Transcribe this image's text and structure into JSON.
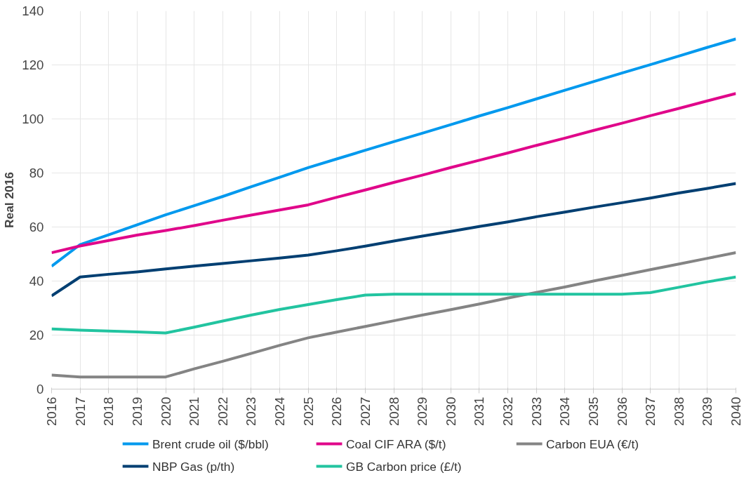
{
  "chart_data": {
    "type": "line",
    "ylabel": "Real 2016",
    "categories": [
      "2016",
      "2017",
      "2018",
      "2019",
      "2020",
      "2021",
      "2022",
      "2023",
      "2024",
      "2025",
      "2026",
      "2027",
      "2028",
      "2029",
      "2030",
      "2031",
      "2032",
      "2033",
      "2034",
      "2035",
      "2036",
      "2037",
      "2038",
      "2039",
      "2040"
    ],
    "series": [
      {
        "name": "Brent crude oil ($/bbl)",
        "color": "#0099ee",
        "values": [
          45.5,
          53.5,
          57.1,
          60.8,
          64.5,
          67.9,
          71.3,
          74.9,
          78.4,
          82,
          85.2,
          88.4,
          91.6,
          94.7,
          97.9,
          101.1,
          104.2,
          107.4,
          110.6,
          113.8,
          117,
          120.1,
          123.3,
          126.5,
          129.6
        ]
      },
      {
        "name": "Coal CIF ARA ($/t)",
        "color": "#e0068a",
        "values": [
          50.5,
          53,
          55,
          57,
          58.7,
          60.5,
          62.5,
          64.4,
          66.3,
          68.2,
          71,
          73.7,
          76.5,
          79.2,
          82,
          84.7,
          87.4,
          90.2,
          92.9,
          95.7,
          98.4,
          101.2,
          103.9,
          106.7,
          109.4
        ]
      },
      {
        "name": "Carbon EUA (€/t)",
        "color": "#848484",
        "values": [
          5.2,
          4.5,
          4.5,
          4.5,
          4.5,
          7.5,
          10.3,
          13.2,
          16.2,
          19,
          21.1,
          23.2,
          25.3,
          27.4,
          29.4,
          31.5,
          33.7,
          35.8,
          37.8,
          40,
          42.1,
          44.2,
          46.3,
          48.4,
          50.5
        ]
      },
      {
        "name": "NBP Gas (p/th)",
        "color": "#003f72",
        "values": [
          34.5,
          41.5,
          42.5,
          43.4,
          44.5,
          45.5,
          46.5,
          47.5,
          48.5,
          49.6,
          51.2,
          52.9,
          54.8,
          56.6,
          58.4,
          60.2,
          61.9,
          63.8,
          65.5,
          67.3,
          69,
          70.7,
          72.6,
          74.3,
          76.1
        ]
      },
      {
        "name": "GB Carbon price (£/t)",
        "color": "#22c4a0",
        "values": [
          22.3,
          21.8,
          21.5,
          21.2,
          20.8,
          22.9,
          25.2,
          27.4,
          29.5,
          31.3,
          33.1,
          34.8,
          35.1,
          35.1,
          35.1,
          35.1,
          35.1,
          35.1,
          35.1,
          35.1,
          35.1,
          35.7,
          37.7,
          39.7,
          41.5
        ]
      }
    ],
    "ylim": [
      0,
      140
    ],
    "yticks": [
      0,
      20,
      40,
      60,
      80,
      100,
      120,
      140
    ],
    "grid": true,
    "legend": "bottom",
    "marker": "none",
    "line_style": "solid"
  }
}
